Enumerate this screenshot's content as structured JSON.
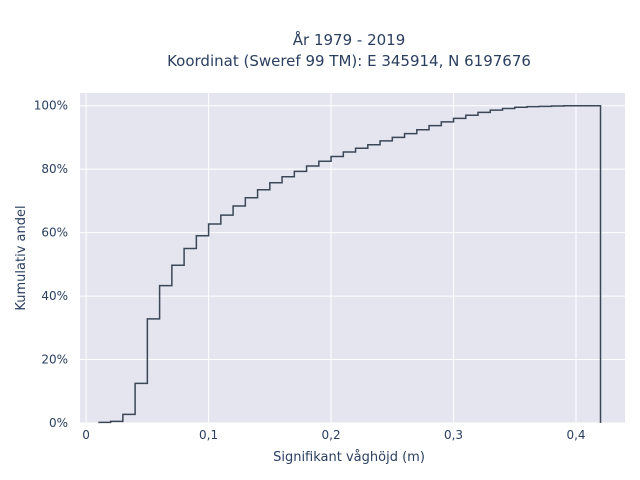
{
  "chart_data": {
    "type": "line",
    "subtype": "cumulative-step-histogram",
    "title_line1": "År 1979 - 2019",
    "title_line2": "Koordinat (Sweref 99 TM): E 345914, N 6197676",
    "xlabel": "Signifikant våghöjd (m)",
    "ylabel": "Kumulativ andel",
    "xlim": [
      -0.005,
      0.44
    ],
    "ylim": [
      0,
      1.04
    ],
    "grid": true,
    "background": "#e5e5f0",
    "line_color": "#3b4656",
    "x_ticks": [
      {
        "value": 0,
        "label": "0"
      },
      {
        "value": 0.1,
        "label": "0,1"
      },
      {
        "value": 0.2,
        "label": "0,2"
      },
      {
        "value": 0.3,
        "label": "0,3"
      },
      {
        "value": 0.4,
        "label": "0,4"
      }
    ],
    "y_ticks": [
      {
        "value": 0,
        "label": "0%"
      },
      {
        "value": 0.2,
        "label": "20%"
      },
      {
        "value": 0.4,
        "label": "40%"
      },
      {
        "value": 0.6,
        "label": "60%"
      },
      {
        "value": 0.8,
        "label": "80%"
      },
      {
        "value": 1.0,
        "label": "100%"
      }
    ],
    "bin_width": 0.01,
    "bin_starts": [
      0.01,
      0.02,
      0.03,
      0.04,
      0.05,
      0.06,
      0.07,
      0.08,
      0.09,
      0.1,
      0.11,
      0.12,
      0.13,
      0.14,
      0.15,
      0.16,
      0.17,
      0.18,
      0.19,
      0.2,
      0.21,
      0.22,
      0.23,
      0.24,
      0.25,
      0.26,
      0.27,
      0.28,
      0.29,
      0.3,
      0.31,
      0.32,
      0.33,
      0.34,
      0.35,
      0.36,
      0.37,
      0.38,
      0.39,
      0.4,
      0.41
    ],
    "cumulative": [
      0.002,
      0.005,
      0.027,
      0.125,
      0.328,
      0.433,
      0.497,
      0.55,
      0.59,
      0.627,
      0.655,
      0.684,
      0.71,
      0.735,
      0.757,
      0.776,
      0.793,
      0.81,
      0.825,
      0.84,
      0.854,
      0.866,
      0.877,
      0.889,
      0.9,
      0.912,
      0.924,
      0.937,
      0.949,
      0.96,
      0.97,
      0.979,
      0.986,
      0.991,
      0.995,
      0.997,
      0.998,
      0.999,
      1.0,
      1.0,
      1.0
    ],
    "end_x": 0.42
  }
}
